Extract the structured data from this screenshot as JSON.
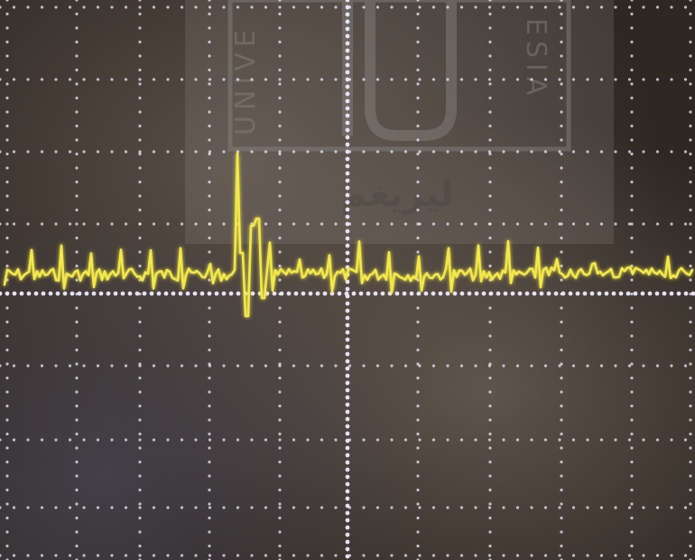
{
  "photo": {
    "subject": "oscilloscope-screen",
    "background_color": "#2e2722",
    "grid_color": "#efe9ff",
    "trace_color": "#f2e84a",
    "grid": {
      "horizontal_divisions": 10,
      "vertical_divisions": 8,
      "minor_ticks_per_division": 5
    }
  },
  "watermark": {
    "left_text": "UNIVE",
    "right_text": "ESIA",
    "script_text": "ليريغم",
    "color": "#8f8a86"
  },
  "trace": {
    "baseline_level": 0,
    "spike_index": 37,
    "spike_peak": 4.2,
    "spike_trough": -1.6
  }
}
